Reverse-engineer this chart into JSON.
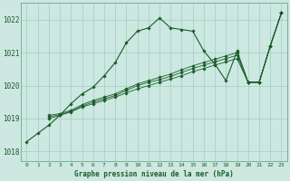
{
  "background_color": "#cce8e0",
  "grid_color": "#9ecfc4",
  "line_color": "#1a5c2a",
  "title": "Graphe pression niveau de la mer (hPa)",
  "xlim": [
    -0.5,
    23.5
  ],
  "ylim": [
    1017.7,
    1022.5
  ],
  "yticks": [
    1018,
    1019,
    1020,
    1021,
    1022
  ],
  "xticks": [
    0,
    1,
    2,
    3,
    4,
    5,
    6,
    7,
    8,
    9,
    10,
    11,
    12,
    13,
    14,
    15,
    16,
    17,
    18,
    19,
    20,
    21,
    22,
    23
  ],
  "series_main": {
    "x": [
      0,
      1,
      2,
      3,
      4,
      5,
      6,
      7,
      8,
      9,
      10,
      11,
      12,
      13,
      14,
      15,
      16,
      17,
      18,
      19,
      20,
      21,
      22,
      23
    ],
    "y": [
      1018.3,
      1018.55,
      1018.8,
      1019.1,
      1019.45,
      1019.75,
      1019.95,
      1020.3,
      1020.7,
      1021.3,
      1021.65,
      1021.75,
      1022.05,
      1021.75,
      1021.7,
      1021.65,
      1021.05,
      1020.65,
      1020.15,
      1021.05,
      1020.1,
      1020.1,
      1021.2,
      1022.2
    ]
  },
  "series_a": {
    "x": [
      2,
      3,
      4,
      5,
      6,
      7,
      8,
      9,
      10,
      11,
      12,
      13,
      14,
      15,
      16,
      17,
      18,
      19,
      20,
      21,
      22,
      23
    ],
    "y": [
      1019.0,
      1019.1,
      1019.2,
      1019.35,
      1019.45,
      1019.55,
      1019.65,
      1019.78,
      1019.9,
      1020.0,
      1020.1,
      1020.2,
      1020.3,
      1020.42,
      1020.52,
      1020.62,
      1020.72,
      1020.82,
      1020.1,
      1020.1,
      1021.2,
      1022.2
    ]
  },
  "series_b": {
    "x": [
      2,
      3,
      4,
      5,
      6,
      7,
      8,
      9,
      10,
      11,
      12,
      13,
      14,
      15,
      16,
      17,
      18,
      19,
      20,
      21,
      22,
      23
    ],
    "y": [
      1019.05,
      1019.12,
      1019.22,
      1019.38,
      1019.5,
      1019.6,
      1019.7,
      1019.85,
      1020.0,
      1020.1,
      1020.18,
      1020.28,
      1020.4,
      1020.52,
      1020.62,
      1020.72,
      1020.82,
      1020.92,
      1020.1,
      1020.1,
      1021.2,
      1022.2
    ]
  },
  "series_c": {
    "x": [
      2,
      3,
      4,
      5,
      6,
      7,
      8,
      9,
      10,
      11,
      12,
      13,
      14,
      15,
      16,
      17,
      18,
      19,
      20,
      21,
      22,
      23
    ],
    "y": [
      1019.1,
      1019.15,
      1019.25,
      1019.42,
      1019.55,
      1019.65,
      1019.75,
      1019.9,
      1020.05,
      1020.15,
      1020.25,
      1020.35,
      1020.48,
      1020.6,
      1020.7,
      1020.8,
      1020.9,
      1021.0,
      1020.1,
      1020.1,
      1021.2,
      1022.2
    ]
  }
}
